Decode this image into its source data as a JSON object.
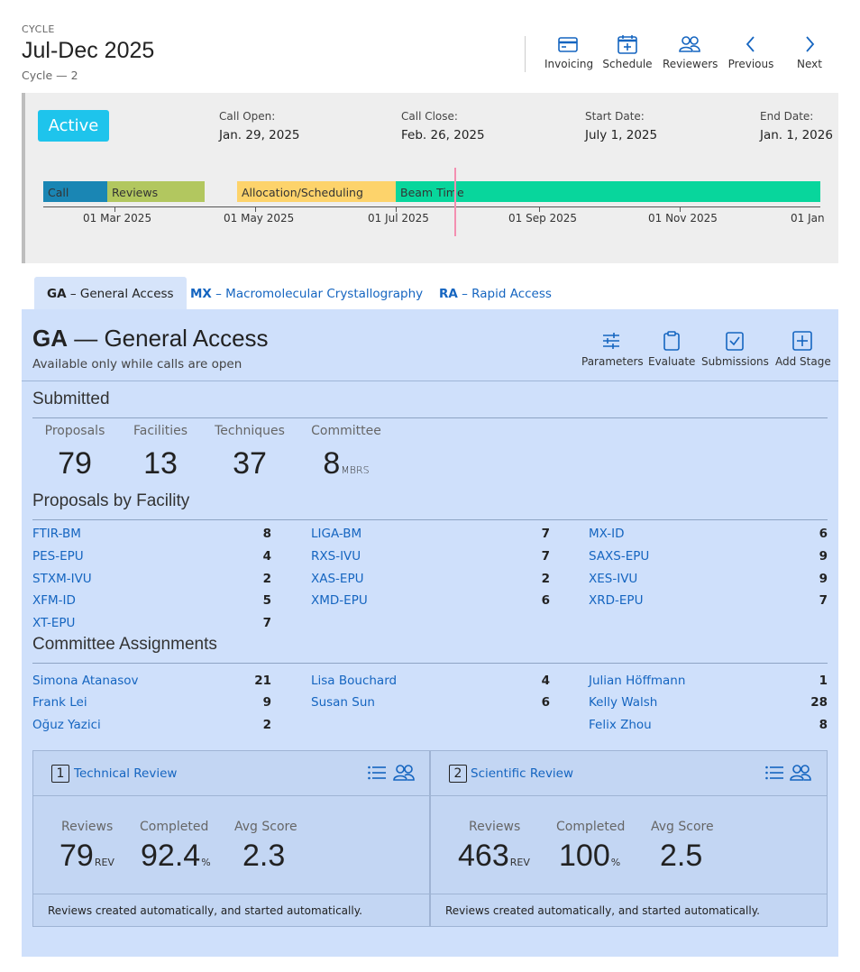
{
  "header": {
    "label": "CYCLE",
    "title": "Jul-Dec 2025",
    "subtitle": "Cycle — 2",
    "tools": [
      "Invoicing",
      "Schedule",
      "Reviewers",
      "Previous",
      "Next"
    ]
  },
  "timeline": {
    "status": "Active",
    "dates": [
      {
        "label": "Call Open:",
        "value": "Jan. 29, 2025"
      },
      {
        "label": "Call Close:",
        "value": "Feb. 26, 2025"
      },
      {
        "label": "Start Date:",
        "value": "July 1, 2025"
      },
      {
        "label": "End Date:",
        "value": "Jan. 1, 2026"
      }
    ],
    "phases": [
      "Call",
      "Reviews",
      "Allocation/Scheduling",
      "Beam Time"
    ],
    "ticks": [
      "01 Mar 2025",
      "01 May 2025",
      "01 Jul 2025",
      "01 Sep 2025",
      "01 Nov 2025",
      "01 Jan"
    ],
    "colors": {
      "call": "#1a86b4",
      "reviews": "#b2c75f",
      "allocation": "#fdd36b",
      "beam": "#08d69c",
      "now": "#f48fb1"
    }
  },
  "tabs": [
    {
      "code": "GA",
      "label": " – General Access"
    },
    {
      "code": "MX",
      "label": " – Macromolecular Crystallography"
    },
    {
      "code": "RA",
      "label": " – Rapid Access"
    }
  ],
  "panel": {
    "code": "GA",
    "title": " — General Access",
    "subtitle": "Available only while calls are open",
    "tools": [
      "Parameters",
      "Evaluate",
      "Submissions",
      "Add Stage"
    ]
  },
  "submitted": {
    "title": "Submitted",
    "stats": [
      {
        "label": "Proposals",
        "value": "79",
        "unit": ""
      },
      {
        "label": "Facilities",
        "value": "13",
        "unit": ""
      },
      {
        "label": "Techniques",
        "value": "37",
        "unit": ""
      },
      {
        "label": "Committee",
        "value": "8",
        "unit": "MBRS"
      }
    ]
  },
  "facilities": {
    "title": "Proposals by Facility",
    "items": [
      {
        "name": "FTIR-BM",
        "count": "8"
      },
      {
        "name": "LIGA-BM",
        "count": "7"
      },
      {
        "name": "MX-ID",
        "count": "6"
      },
      {
        "name": "PES-EPU",
        "count": "4"
      },
      {
        "name": "RXS-IVU",
        "count": "7"
      },
      {
        "name": "SAXS-EPU",
        "count": "9"
      },
      {
        "name": "STXM-IVU",
        "count": "2"
      },
      {
        "name": "XAS-EPU",
        "count": "2"
      },
      {
        "name": "XES-IVU",
        "count": "9"
      },
      {
        "name": "XFM-ID",
        "count": "5"
      },
      {
        "name": "XMD-EPU",
        "count": "6"
      },
      {
        "name": "XRD-EPU",
        "count": "7"
      },
      {
        "name": "XT-EPU",
        "count": "7"
      }
    ]
  },
  "committee": {
    "title": "Committee Assignments",
    "items": [
      {
        "name": "Simona Atanasov",
        "count": "21"
      },
      {
        "name": "Lisa Bouchard",
        "count": "4"
      },
      {
        "name": "Julian Höffmann",
        "count": "1"
      },
      {
        "name": "Frank Lei",
        "count": "9"
      },
      {
        "name": "Susan Sun",
        "count": "6"
      },
      {
        "name": "Kelly Walsh",
        "count": "28"
      },
      {
        "name": "Oğuz Yazici",
        "count": "2"
      },
      {
        "name": "Felix Zhou",
        "count": "8"
      }
    ]
  },
  "stages": [
    {
      "num": "1",
      "title": "Technical Review",
      "stats": [
        {
          "label": "Reviews",
          "value": "79",
          "unit": "REV"
        },
        {
          "label": "Completed",
          "value": "92.4",
          "unit": "%"
        },
        {
          "label": "Avg Score",
          "value": "2.3",
          "unit": ""
        }
      ],
      "footer": "Reviews created automatically, and started automatically."
    },
    {
      "num": "2",
      "title": "Scientific Review",
      "stats": [
        {
          "label": "Reviews",
          "value": "463",
          "unit": "REV"
        },
        {
          "label": "Completed",
          "value": "100",
          "unit": "%"
        },
        {
          "label": "Avg Score",
          "value": "2.5",
          "unit": ""
        }
      ],
      "footer": "Reviews created automatically, and started automatically."
    }
  ]
}
